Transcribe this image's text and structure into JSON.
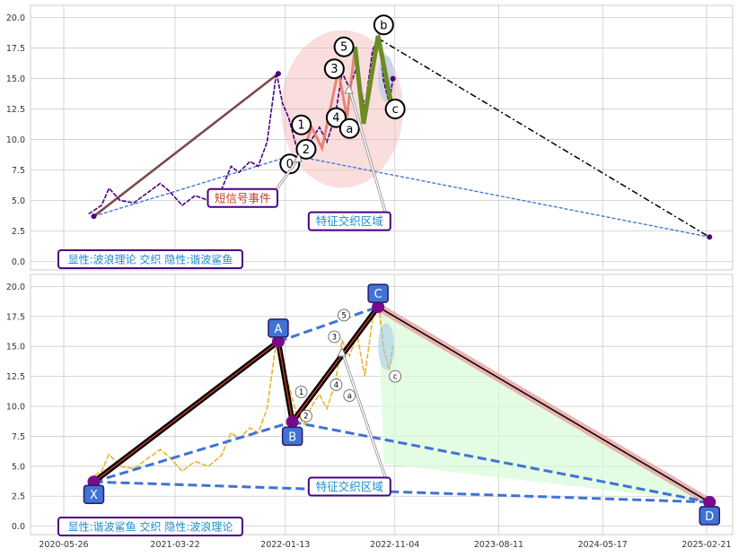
{
  "chart_data": [
    {
      "type": "line",
      "panel": "top",
      "ylim": [
        -0.7,
        21
      ],
      "yticks": [
        0.0,
        2.5,
        5.0,
        7.5,
        10.0,
        12.5,
        15.0,
        17.5,
        20.0
      ],
      "ytick_labels": [
        "0.0",
        "2.5",
        "5.0",
        "7.5",
        "10.0",
        "12.5",
        "15.0",
        "17.5",
        "20.0"
      ],
      "grid": true,
      "series": [
        {
          "role": "price",
          "color": "#4b0082",
          "points": [
            [
              "2020-08-01",
              3.9
            ],
            [
              "2020-09-05",
              4.6
            ],
            [
              "2020-09-25",
              6.0
            ],
            [
              "2020-10-25",
              5.0
            ],
            [
              "2020-12-01",
              4.8
            ],
            [
              "2021-01-05",
              5.6
            ],
            [
              "2021-02-10",
              6.4
            ],
            [
              "2021-03-05",
              5.8
            ],
            [
              "2021-04-10",
              4.6
            ],
            [
              "2021-05-15",
              5.4
            ],
            [
              "2021-06-20",
              5.0
            ],
            [
              "2021-07-25",
              5.9
            ],
            [
              "2021-08-20",
              7.8
            ],
            [
              "2021-09-10",
              7.3
            ],
            [
              "2021-10-10",
              8.2
            ],
            [
              "2021-11-01",
              7.8
            ],
            [
              "2021-11-25",
              9.8
            ],
            [
              "2021-12-20",
              15.5
            ],
            [
              "2022-01-05",
              13.0
            ],
            [
              "2022-01-22",
              11.8
            ],
            [
              "2022-02-10",
              9.6
            ],
            [
              "2022-03-05",
              8.5
            ],
            [
              "2022-03-25",
              10.0
            ],
            [
              "2022-04-15",
              11.0
            ],
            [
              "2022-05-05",
              9.8
            ],
            [
              "2022-05-28",
              12.0
            ],
            [
              "2022-06-15",
              15.5
            ],
            [
              "2022-07-05",
              14.2
            ],
            [
              "2022-07-25",
              16.0
            ],
            [
              "2022-08-15",
              12.5
            ],
            [
              "2022-09-05",
              17.3
            ],
            [
              "2022-09-22",
              18.5
            ],
            [
              "2022-10-05",
              14.8
            ],
            [
              "2022-10-20",
              13.0
            ],
            [
              "2022-10-30",
              15.0
            ]
          ]
        },
        {
          "role": "wave-impulse",
          "color": "#8b2f2f",
          "points": [
            [
              "2022-02-25",
              8.6
            ],
            [
              "2022-03-25",
              11.0
            ],
            [
              "2022-04-22",
              9.3
            ],
            [
              "2022-06-05",
              15.7
            ],
            [
              "2022-06-28",
              11.8
            ],
            [
              "2022-07-20",
              17.6
            ]
          ]
        },
        {
          "role": "wave-correction",
          "color": "#6b8e23",
          "points": [
            [
              "2022-07-20",
              17.6
            ],
            [
              "2022-08-12",
              11.3
            ],
            [
              "2022-09-20",
              18.5
            ],
            [
              "2022-10-25",
              13.0
            ]
          ]
        },
        {
          "role": "swing-trend",
          "color": "#7b4a4a",
          "points": [
            [
              "2020-08-15",
              3.7
            ],
            [
              "2021-12-25",
              15.4
            ]
          ]
        },
        {
          "role": "support-line",
          "color": "#3a6fd8",
          "points": [
            [
              "2020-08-15",
              3.7
            ],
            [
              "2022-02-01",
              8.7
            ],
            [
              "2025-03-01",
              2.0
            ]
          ]
        },
        {
          "role": "projection",
          "color": "#000000",
          "points": [
            [
              "2022-09-20",
              18.3
            ],
            [
              "2025-03-01",
              2.0
            ]
          ]
        }
      ],
      "wave_labels": [
        {
          "label": "0",
          "x": "2022-01-25",
          "y": 8.0
        },
        {
          "label": "1",
          "x": "2022-02-25",
          "y": 11.2
        },
        {
          "label": "2",
          "x": "2022-03-10",
          "y": 9.2
        },
        {
          "label": "3",
          "x": "2022-05-25",
          "y": 15.8
        },
        {
          "label": "4",
          "x": "2022-05-30",
          "y": 11.8
        },
        {
          "label": "5",
          "x": "2022-06-20",
          "y": 17.6
        },
        {
          "label": "a",
          "x": "2022-07-05",
          "y": 10.9
        },
        {
          "label": "b",
          "x": "2022-10-05",
          "y": 19.4
        },
        {
          "label": "c",
          "x": "2022-11-05",
          "y": 12.5
        }
      ],
      "annotations": [
        {
          "text": "短信号事件",
          "x": "2021-09-20",
          "y": 5.2,
          "color": "#c0392b"
        },
        {
          "text": "特征交织区域",
          "x": "2022-07-05",
          "y": 3.3,
          "color": "#1f8acc"
        }
      ],
      "legend_text": "显性:波浪理论 交织 隐性:谐波鲨鱼"
    },
    {
      "type": "line",
      "panel": "bottom",
      "ylim": [
        -0.7,
        21
      ],
      "yticks": [
        0.0,
        2.5,
        5.0,
        7.5,
        10.0,
        12.5,
        15.0,
        17.5,
        20.0
      ],
      "ytick_labels": [
        "0.0",
        "2.5",
        "5.0",
        "7.5",
        "10.0",
        "12.5",
        "15.0",
        "17.5",
        "20.0"
      ],
      "xticks": [
        "2020-05-26",
        "2021-03-22",
        "2022-01-13",
        "2022-11-04",
        "2023-08-11",
        "2024-05-17",
        "2025-02-21"
      ],
      "grid": true,
      "harmonic_points": [
        {
          "label": "X",
          "x": "2020-08-15",
          "y": 3.7
        },
        {
          "label": "A",
          "x": "2021-12-25",
          "y": 15.4
        },
        {
          "label": "B",
          "x": "2022-02-01",
          "y": 8.7
        },
        {
          "label": "C",
          "x": "2022-09-20",
          "y": 18.3
        },
        {
          "label": "D",
          "x": "2025-03-01",
          "y": 2.0
        }
      ],
      "wave_labels": [
        {
          "label": "1",
          "x": "2022-02-25",
          "y": 11.2
        },
        {
          "label": "2",
          "x": "2022-03-10",
          "y": 9.2
        },
        {
          "label": "3",
          "x": "2022-05-25",
          "y": 15.8
        },
        {
          "label": "4",
          "x": "2022-05-30",
          "y": 11.8
        },
        {
          "label": "5",
          "x": "2022-06-20",
          "y": 17.6
        },
        {
          "label": "a",
          "x": "2022-07-05",
          "y": 10.9
        },
        {
          "label": "c",
          "x": "2022-11-05",
          "y": 12.5
        }
      ],
      "annotations": [
        {
          "text": "特征交织区域",
          "x": "2022-07-05",
          "y": 3.3,
          "color": "#1f8acc"
        }
      ],
      "legend_text": "显性:谐波鲨鱼 交织 隐性:波浪理论"
    }
  ]
}
